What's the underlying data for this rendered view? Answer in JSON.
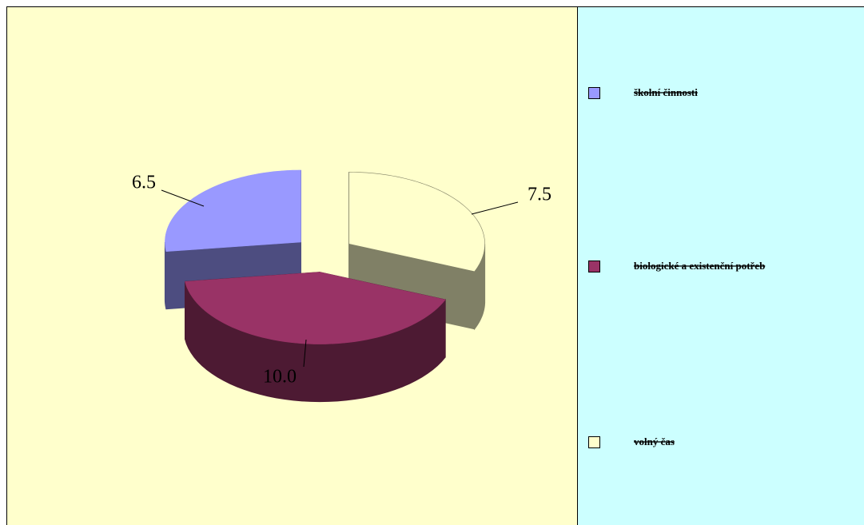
{
  "chart_data": {
    "type": "pie",
    "categories": [
      "školní činnosti",
      "biologické a existenční potřeb",
      "volný čas"
    ],
    "values": [
      6.5,
      10.0,
      7.5
    ],
    "value_labels": [
      "6.5",
      "10.0",
      "7.5"
    ],
    "colors": [
      "#9999ff",
      "#993366",
      "#ffffcc"
    ],
    "legend": "right"
  }
}
